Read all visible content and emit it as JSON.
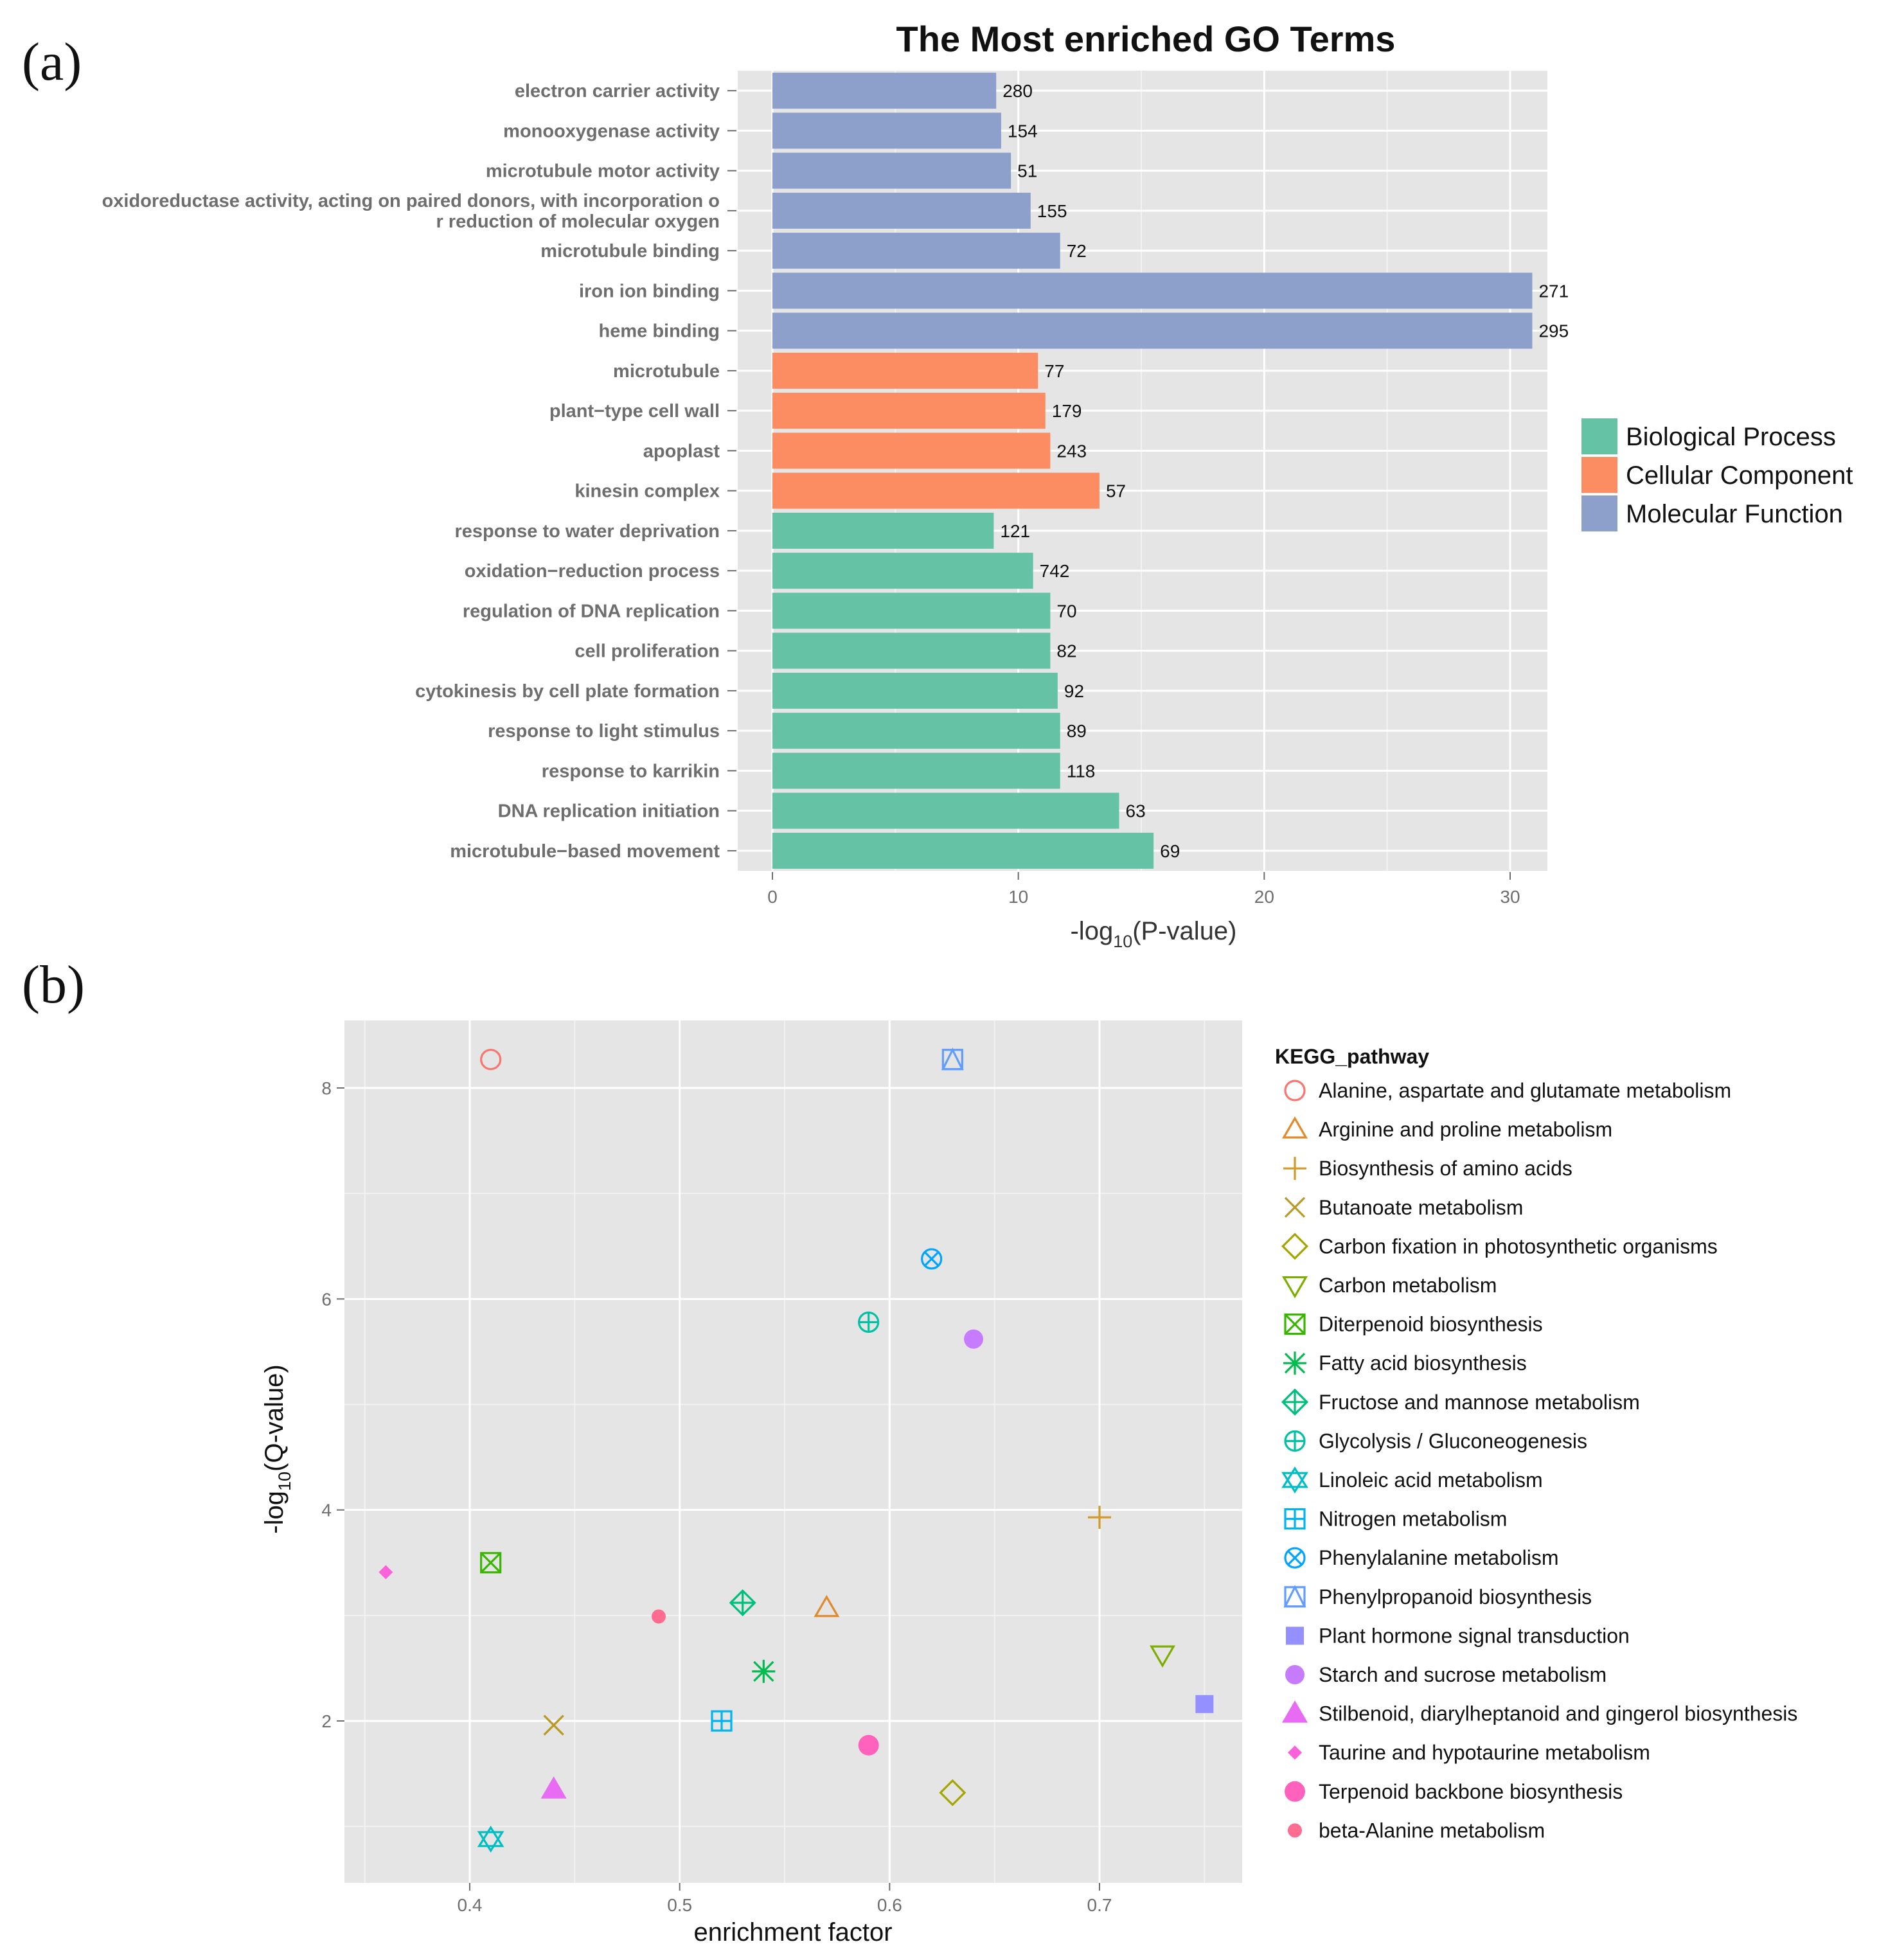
{
  "chart_data": [
    {
      "panel_label": "(a)",
      "type": "bar",
      "orientation": "horizontal",
      "title": "The Most enriched GO Terms",
      "xlabel": "-log",
      "xlabel_sub": "10",
      "xlabel_tail": "(P-value)",
      "xlim": [
        0,
        32.5
      ],
      "xticks": [
        0,
        10,
        20,
        30
      ],
      "grid": true,
      "legend_position": "right",
      "legend": [
        {
          "name": "Biological Process",
          "color": "#66c2a5"
        },
        {
          "name": "Cellular Component",
          "color": "#fc8d62"
        },
        {
          "name": "Molecular Function",
          "color": "#8da0cb"
        }
      ],
      "bars": [
        {
          "term": "electron carrier activity",
          "term2": "",
          "value": 9.1,
          "count": "280",
          "group": "Molecular Function"
        },
        {
          "term": "monooxygenase activity",
          "term2": "",
          "value": 9.3,
          "count": "154",
          "group": "Molecular Function"
        },
        {
          "term": "microtubule motor activity",
          "term2": "",
          "value": 9.7,
          "count": "51",
          "group": "Molecular Function"
        },
        {
          "term": "oxidoreductase activity, acting on paired donors, with incorporation o",
          "term2": "r reduction of molecular oxygen",
          "value": 10.5,
          "count": "155",
          "group": "Molecular Function"
        },
        {
          "term": "microtubule binding",
          "term2": "",
          "value": 11.7,
          "count": "72",
          "group": "Molecular Function"
        },
        {
          "term": "iron ion binding",
          "term2": "",
          "value": 30.9,
          "count": "271",
          "group": "Molecular Function"
        },
        {
          "term": "heme binding",
          "term2": "",
          "value": 30.9,
          "count": "295",
          "group": "Molecular Function"
        },
        {
          "term": "microtubule",
          "term2": "",
          "value": 10.8,
          "count": "77",
          "group": "Cellular Component"
        },
        {
          "term": "plant−type cell wall",
          "term2": "",
          "value": 11.1,
          "count": "179",
          "group": "Cellular Component"
        },
        {
          "term": "apoplast",
          "term2": "",
          "value": 11.3,
          "count": "243",
          "group": "Cellular Component"
        },
        {
          "term": "kinesin complex",
          "term2": "",
          "value": 13.3,
          "count": "57",
          "group": "Cellular Component"
        },
        {
          "term": "response to water deprivation",
          "term2": "",
          "value": 9.0,
          "count": "121",
          "group": "Biological Process"
        },
        {
          "term": "oxidation−reduction process",
          "term2": "",
          "value": 10.6,
          "count": "742",
          "group": "Biological Process"
        },
        {
          "term": "regulation of DNA replication",
          "term2": "",
          "value": 11.3,
          "count": "70",
          "group": "Biological Process"
        },
        {
          "term": "cell proliferation",
          "term2": "",
          "value": 11.3,
          "count": "82",
          "group": "Biological Process"
        },
        {
          "term": "cytokinesis by cell plate formation",
          "term2": "",
          "value": 11.6,
          "count": "92",
          "group": "Biological Process"
        },
        {
          "term": "response to light stimulus",
          "term2": "",
          "value": 11.7,
          "count": "89",
          "group": "Biological Process"
        },
        {
          "term": "response to karrikin",
          "term2": "",
          "value": 11.7,
          "count": "118",
          "group": "Biological Process"
        },
        {
          "term": "DNA replication initiation",
          "term2": "",
          "value": 14.1,
          "count": "63",
          "group": "Biological Process"
        },
        {
          "term": "microtubule−based movement",
          "term2": "",
          "value": 15.5,
          "count": "69",
          "group": "Biological Process"
        }
      ]
    },
    {
      "panel_label": "(b)",
      "type": "scatter",
      "xlabel": "enrichment factor",
      "ylabel": "-log",
      "ylabel_sub": "10",
      "ylabel_tail": "(Q-value)",
      "xlim": [
        0.34,
        0.77
      ],
      "ylim": [
        0.63,
        8.65
      ],
      "xticks": [
        0.4,
        0.5,
        0.6,
        0.7
      ],
      "yticks": [
        2,
        4,
        6,
        8
      ],
      "grid": true,
      "legend_title": "KEGG_pathway",
      "legend_position": "right",
      "series": [
        {
          "name": "Alanine, aspartate and glutamate metabolism",
          "color": "#f8766d",
          "marker": "circle-open",
          "x": 0.41,
          "y": 8.27
        },
        {
          "name": "Arginine and proline metabolism",
          "color": "#e08a2c",
          "marker": "triangle-open",
          "x": 0.57,
          "y": 3.07
        },
        {
          "name": "Biosynthesis of amino acids",
          "color": "#d29a27",
          "marker": "plus",
          "x": 0.7,
          "y": 3.93
        },
        {
          "name": "Butanoate metabolism",
          "color": "#b99a24",
          "marker": "cross",
          "x": 0.44,
          "y": 1.96
        },
        {
          "name": "Carbon fixation in photosynthetic organisms",
          "color": "#a3a500",
          "marker": "diamond-open",
          "x": 0.63,
          "y": 1.32
        },
        {
          "name": "Carbon metabolism",
          "color": "#7cae00",
          "marker": "triangle-down-open",
          "x": 0.73,
          "y": 2.63
        },
        {
          "name": "Diterpenoid biosynthesis",
          "color": "#39b600",
          "marker": "square-cross",
          "x": 0.41,
          "y": 3.5
        },
        {
          "name": "Fatty acid biosynthesis",
          "color": "#00bb4e",
          "marker": "asterisk",
          "x": 0.54,
          "y": 2.47
        },
        {
          "name": "Fructose and mannose metabolism",
          "color": "#00bf7d",
          "marker": "diamond-plus",
          "x": 0.53,
          "y": 3.12
        },
        {
          "name": "Glycolysis / Gluconeogenesis",
          "color": "#00c1a3",
          "marker": "circle-plus",
          "x": 0.59,
          "y": 5.78
        },
        {
          "name": "Linoleic acid metabolism",
          "color": "#00bfc4",
          "marker": "star-of-david",
          "x": 0.41,
          "y": 0.88
        },
        {
          "name": "Nitrogen metabolism",
          "color": "#00b4ef",
          "marker": "square-plus",
          "x": 0.52,
          "y": 2.0
        },
        {
          "name": "Phenylalanine metabolism",
          "color": "#00a5ff",
          "marker": "circle-cross",
          "x": 0.62,
          "y": 6.38
        },
        {
          "name": "Phenylpropanoid biosynthesis",
          "color": "#619cff",
          "marker": "square-triangle",
          "x": 0.63,
          "y": 8.27
        },
        {
          "name": "Plant hormone signal transduction",
          "color": "#9590ff",
          "marker": "square-filled",
          "x": 0.75,
          "y": 2.16
        },
        {
          "name": "Starch and sucrose metabolism",
          "color": "#c77cff",
          "marker": "circle-filled",
          "x": 0.64,
          "y": 5.62
        },
        {
          "name": "Stilbenoid, diarylheptanoid and gingerol biosynthesis",
          "color": "#e76bf3",
          "marker": "triangle-filled",
          "x": 0.44,
          "y": 1.35
        },
        {
          "name": "Taurine and hypotaurine metabolism",
          "color": "#fa62db",
          "marker": "diamond-filled",
          "x": 0.36,
          "y": 3.41
        },
        {
          "name": "Terpenoid backbone biosynthesis",
          "color": "#ff62bc",
          "marker": "circle-filled-large",
          "x": 0.59,
          "y": 1.77
        },
        {
          "name": "beta-Alanine metabolism",
          "color": "#ff6c91",
          "marker": "circle-filled-small",
          "x": 0.49,
          "y": 2.99
        }
      ]
    }
  ]
}
